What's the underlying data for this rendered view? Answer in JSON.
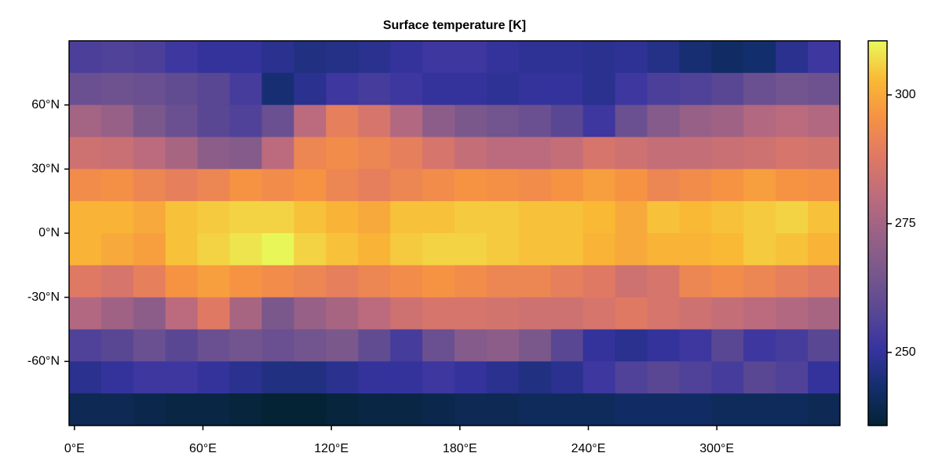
{
  "chart_data": {
    "type": "heatmap",
    "title": "Surface temperature [K]",
    "x": [
      5,
      20,
      35,
      50,
      65,
      80,
      95,
      110,
      125,
      140,
      155,
      170,
      185,
      200,
      215,
      230,
      245,
      260,
      275,
      290,
      305,
      320,
      335,
      350
    ],
    "y": [
      82.5,
      67.5,
      52.5,
      37.5,
      22.5,
      7.5,
      -7.5,
      -22.5,
      -37.5,
      -52.5,
      -67.5,
      -82.5
    ],
    "z": [
      [
        255,
        256,
        255,
        252,
        250,
        250,
        248,
        246,
        247,
        248,
        250,
        252,
        252,
        250,
        249,
        249,
        248,
        249,
        247,
        244,
        242,
        243,
        248,
        252
      ],
      [
        262,
        263,
        262,
        260,
        258,
        254,
        244,
        248,
        252,
        254,
        252,
        250,
        250,
        249,
        250,
        250,
        248,
        252,
        255,
        256,
        258,
        262,
        264,
        263
      ],
      [
        275,
        272,
        266,
        262,
        258,
        256,
        262,
        280,
        290,
        286,
        278,
        270,
        266,
        264,
        262,
        258,
        252,
        262,
        268,
        272,
        274,
        278,
        280,
        278
      ],
      [
        284,
        283,
        280,
        276,
        270,
        268,
        280,
        292,
        294,
        292,
        290,
        286,
        282,
        280,
        280,
        282,
        286,
        284,
        282,
        282,
        283,
        284,
        286,
        285
      ],
      [
        294,
        295,
        292,
        290,
        292,
        296,
        294,
        296,
        292,
        290,
        292,
        294,
        296,
        295,
        294,
        296,
        298,
        296,
        292,
        294,
        296,
        298,
        296,
        295
      ],
      [
        302,
        302,
        300,
        304,
        305,
        306,
        306,
        304,
        302,
        300,
        304,
        304,
        305,
        305,
        304,
        304,
        303,
        300,
        304,
        303,
        304,
        305,
        306,
        304
      ],
      [
        302,
        300,
        298,
        304,
        306,
        308,
        310,
        306,
        304,
        302,
        305,
        306,
        306,
        305,
        304,
        304,
        302,
        300,
        302,
        302,
        303,
        305,
        304,
        302
      ],
      [
        288,
        286,
        290,
        296,
        298,
        296,
        294,
        292,
        290,
        292,
        294,
        296,
        294,
        292,
        292,
        290,
        288,
        284,
        286,
        292,
        294,
        292,
        290,
        288
      ],
      [
        278,
        274,
        270,
        280,
        288,
        276,
        266,
        272,
        276,
        280,
        284,
        286,
        286,
        285,
        284,
        284,
        286,
        288,
        286,
        284,
        282,
        280,
        278,
        276
      ],
      [
        256,
        258,
        262,
        258,
        262,
        264,
        262,
        264,
        266,
        260,
        254,
        262,
        268,
        270,
        266,
        258,
        250,
        248,
        250,
        252,
        258,
        252,
        254,
        258
      ],
      [
        248,
        250,
        252,
        252,
        250,
        248,
        246,
        246,
        248,
        250,
        250,
        252,
        250,
        248,
        246,
        248,
        252,
        256,
        258,
        256,
        254,
        258,
        256,
        250
      ],
      [
        240,
        240,
        239,
        238,
        238,
        237,
        236,
        236,
        237,
        238,
        238,
        239,
        240,
        240,
        241,
        241,
        241,
        242,
        242,
        242,
        241,
        241,
        241,
        240
      ]
    ],
    "xlim": [
      -2.5,
      357.5
    ],
    "ylim": [
      -90,
      90
    ],
    "xticks": [
      {
        "value": 0,
        "label": "0°E"
      },
      {
        "value": 60,
        "label": "60°E"
      },
      {
        "value": 120,
        "label": "120°E"
      },
      {
        "value": 180,
        "label": "180°E"
      },
      {
        "value": 240,
        "label": "240°E"
      },
      {
        "value": 300,
        "label": "300°E"
      }
    ],
    "yticks": [
      {
        "value": -60,
        "label": "-60°N"
      },
      {
        "value": -30,
        "label": "-30°N"
      },
      {
        "value": 0,
        "label": "0°N"
      },
      {
        "value": 30,
        "label": "30°N"
      },
      {
        "value": 60,
        "label": "60°N"
      }
    ],
    "colormap": "thermal",
    "clim": [
      235.8,
      310.5
    ],
    "cticks": [
      250,
      275,
      300
    ]
  }
}
